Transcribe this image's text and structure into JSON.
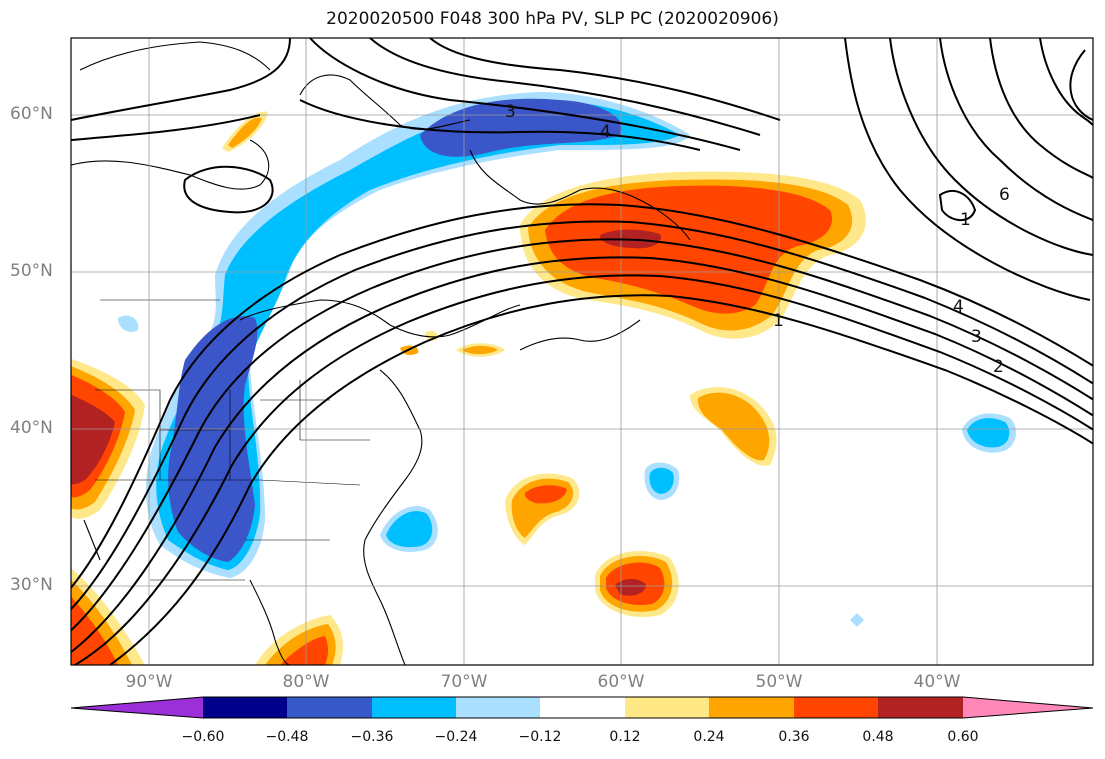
{
  "title": "2020020500 F048 300 hPa PV, SLP PC (2020020906)",
  "map": {
    "region": "Eastern North America / Western North Atlantic",
    "lat_range": [
      25,
      65
    ],
    "lon_range": [
      -95,
      -30
    ],
    "gridlines": true,
    "lat_labels": [
      "60°N",
      "50°N",
      "40°N",
      "30°N"
    ],
    "lon_labels": [
      "90°W",
      "80°W",
      "70°W",
      "60°W",
      "50°W",
      "40°W"
    ],
    "contour_labels": [
      "3",
      "4",
      "1",
      "4",
      "3",
      "2",
      "6",
      "1"
    ],
    "colors": {
      "neg_060": "#9c2ed6",
      "neg_048": "#00008b",
      "neg_036": "#3a56c8",
      "neg_024": "#00bfff",
      "neg_012": "#aadfff",
      "neutral": "#ffffff",
      "pos_012": "#ffe88a",
      "pos_024": "#ffa500",
      "pos_036": "#ff4500",
      "pos_048": "#b22222",
      "pos_060": "#ff88b8"
    }
  },
  "colorbar": {
    "ticks": [
      "−0.60",
      "−0.48",
      "−0.36",
      "−0.24",
      "−0.12",
      "0.12",
      "0.24",
      "0.36",
      "0.48",
      "0.60"
    ],
    "segment_colors": [
      "#9b30d9",
      "#00008b",
      "#3758c9",
      "#00bfff",
      "#aadfff",
      "#ffffff",
      "#ffe987",
      "#ffa500",
      "#ff4500",
      "#b22222",
      "#ff88b8"
    ]
  }
}
